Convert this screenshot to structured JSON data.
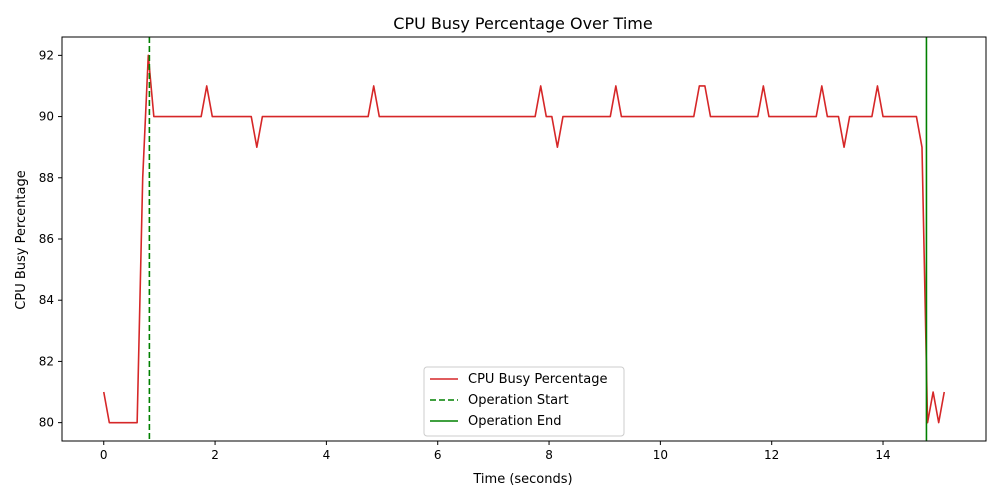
{
  "chart_data": {
    "type": "line",
    "title": "CPU Busy Percentage Over Time",
    "xlabel": "Time (seconds)",
    "ylabel": "CPU Busy Percentage",
    "xlim": [
      -0.75,
      15.85
    ],
    "ylim": [
      79.4,
      92.6
    ],
    "xticks": [
      0,
      2,
      4,
      6,
      8,
      10,
      12,
      14
    ],
    "yticks": [
      80,
      82,
      84,
      86,
      88,
      90,
      92
    ],
    "grid": false,
    "legend_position": "lower center",
    "series": [
      {
        "name": "CPU Busy Percentage",
        "color": "#d62728",
        "style": "solid",
        "x": [
          0.0,
          0.1,
          0.2,
          0.3,
          0.4,
          0.5,
          0.6,
          0.7,
          0.8,
          0.9,
          1.0,
          1.1,
          1.2,
          1.3,
          1.4,
          1.5,
          1.6,
          1.7,
          1.75,
          1.85,
          1.95,
          2.05,
          2.15,
          2.25,
          2.35,
          2.45,
          2.55,
          2.65,
          2.75,
          2.85,
          2.95,
          3.05,
          3.15,
          3.25,
          3.35,
          3.45,
          3.55,
          3.65,
          3.75,
          3.85,
          3.95,
          4.05,
          4.15,
          4.25,
          4.35,
          4.45,
          4.55,
          4.65,
          4.75,
          4.85,
          4.95,
          5.05,
          5.2,
          5.4,
          5.6,
          5.8,
          6.0,
          6.2,
          6.4,
          6.6,
          6.8,
          7.0,
          7.2,
          7.4,
          7.6,
          7.75,
          7.85,
          7.95,
          8.05,
          8.15,
          8.25,
          8.35,
          8.5,
          8.7,
          8.9,
          9.1,
          9.2,
          9.3,
          9.5,
          9.7,
          9.9,
          10.1,
          10.3,
          10.5,
          10.6,
          10.7,
          10.8,
          10.9,
          11.0,
          11.2,
          11.4,
          11.6,
          11.75,
          11.85,
          11.95,
          12.1,
          12.3,
          12.5,
          12.7,
          12.8,
          12.9,
          13.0,
          13.1,
          13.2,
          13.3,
          13.4,
          13.5,
          13.6,
          13.7,
          13.8,
          13.9,
          14.0,
          14.1,
          14.2,
          14.3,
          14.4,
          14.5,
          14.6,
          14.7,
          14.8,
          14.9,
          15.0,
          15.1
        ],
        "y": [
          81,
          80,
          80,
          80,
          80,
          80,
          80,
          88,
          92,
          90,
          90,
          90,
          90,
          90,
          90,
          90,
          90,
          90,
          90,
          91,
          90,
          90,
          90,
          90,
          90,
          90,
          90,
          90,
          89,
          90,
          90,
          90,
          90,
          90,
          90,
          90,
          90,
          90,
          90,
          90,
          90,
          90,
          90,
          90,
          90,
          90,
          90,
          90,
          90,
          91,
          90,
          90,
          90,
          90,
          90,
          90,
          90,
          90,
          90,
          90,
          90,
          90,
          90,
          90,
          90,
          90,
          91,
          90,
          90,
          89,
          90,
          90,
          90,
          90,
          90,
          90,
          91,
          90,
          90,
          90,
          90,
          90,
          90,
          90,
          90,
          91,
          91,
          90,
          90,
          90,
          90,
          90,
          90,
          91,
          90,
          90,
          90,
          90,
          90,
          90,
          91,
          90,
          90,
          90,
          89,
          90,
          90,
          90,
          90,
          90,
          91,
          90,
          90,
          90,
          90,
          90,
          90,
          90,
          89,
          80,
          81,
          80,
          81
        ]
      }
    ],
    "vlines": [
      {
        "name": "Operation Start",
        "x": 0.82,
        "color": "#008000",
        "style": "dashed"
      },
      {
        "name": "Operation End",
        "x": 14.78,
        "color": "#008000",
        "style": "solid"
      }
    ],
    "legend": [
      "CPU Busy Percentage",
      "Operation Start",
      "Operation End"
    ]
  }
}
